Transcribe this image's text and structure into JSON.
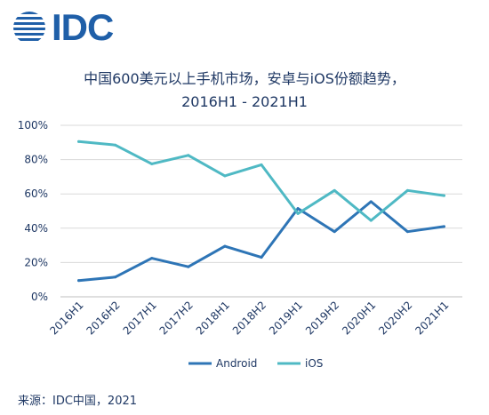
{
  "logo": {
    "text": "IDC"
  },
  "title_line1": "中国600美元以上手机市场，安卓与iOS份额趋势，",
  "title_line2": "2016H1 - 2021H1",
  "source": "来源：IDC中国，2021",
  "chart_data": {
    "type": "line",
    "title": "中国600美元以上手机市场，安卓与iOS份额趋势，2016H1 - 2021H1",
    "categories": [
      "2016H1",
      "2016H2",
      "2017H1",
      "2017H2",
      "2018H1",
      "2018H2",
      "2019H1",
      "2019H2",
      "2020H1",
      "2020H2",
      "2021H1"
    ],
    "series": [
      {
        "name": "Android",
        "color": "#2e75b6",
        "values": [
          9.5,
          11.5,
          22.5,
          17.5,
          29.5,
          23,
          51.5,
          38,
          55.5,
          38,
          41
        ]
      },
      {
        "name": "iOS",
        "color": "#4fb9c4",
        "values": [
          90.5,
          88.5,
          77.5,
          82.5,
          70.5,
          77,
          48.5,
          62,
          44.5,
          62,
          59
        ]
      }
    ],
    "ylim": [
      0,
      100
    ],
    "yticks": [
      "0%",
      "20%",
      "40%",
      "60%",
      "80%",
      "100%"
    ],
    "grid": true,
    "legend": "bottom"
  }
}
